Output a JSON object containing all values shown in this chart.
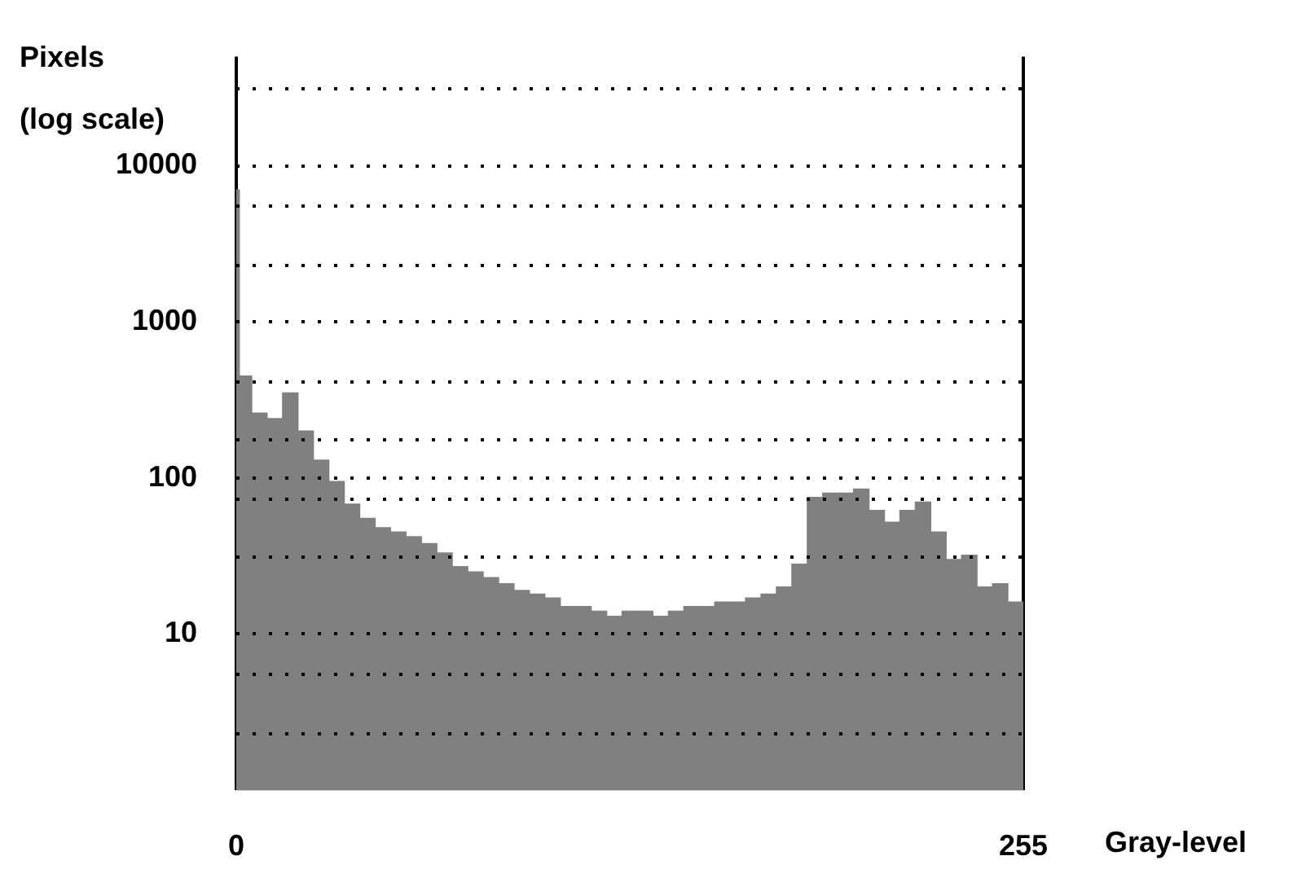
{
  "chart_data": {
    "type": "histogram",
    "xlabel": "Gray-level",
    "ylabel": "Pixels (log scale)",
    "color": "#808080",
    "log": "y",
    "grid": "y",
    "legend": false,
    "bins": [
      0,
      1,
      5,
      10,
      15,
      20,
      25,
      30,
      35,
      40,
      45,
      50,
      55,
      60,
      65,
      70,
      75,
      80,
      85,
      90,
      95,
      100,
      105,
      110,
      115,
      120,
      125,
      130,
      135,
      140,
      145,
      150,
      155,
      160,
      165,
      170,
      175,
      180,
      185,
      190,
      195,
      200,
      205,
      210,
      215,
      220,
      225,
      230,
      235,
      240,
      245,
      250,
      255
    ],
    "values": [
      7000,
      450,
      260,
      240,
      350,
      200,
      130,
      95,
      68,
      55,
      48,
      45,
      42,
      38,
      33,
      27,
      25,
      23,
      21,
      19,
      18,
      17,
      15,
      15,
      14,
      13,
      14,
      14,
      13,
      14,
      15,
      15,
      16,
      16,
      17,
      18,
      20,
      28,
      75,
      80,
      80,
      85,
      62,
      52,
      62,
      70,
      45,
      30,
      32,
      20,
      21,
      16
    ],
    "xlim": [
      0,
      255
    ],
    "xticks": [
      0,
      255
    ],
    "ylim": [
      1,
      50000
    ],
    "yticks": [
      {
        "value": 2.3,
        "label": null
      },
      {
        "value": 5.5,
        "label": null
      },
      10,
      {
        "value": 31,
        "label": null
      },
      {
        "value": 73,
        "label": null
      },
      100,
      {
        "value": 175,
        "label": null
      },
      {
        "value": 410,
        "label": null
      },
      1000,
      {
        "value": 2300,
        "label": null
      },
      {
        "value": 5500,
        "label": null
      },
      10000,
      {
        "value": 31000,
        "label": null
      }
    ]
  }
}
